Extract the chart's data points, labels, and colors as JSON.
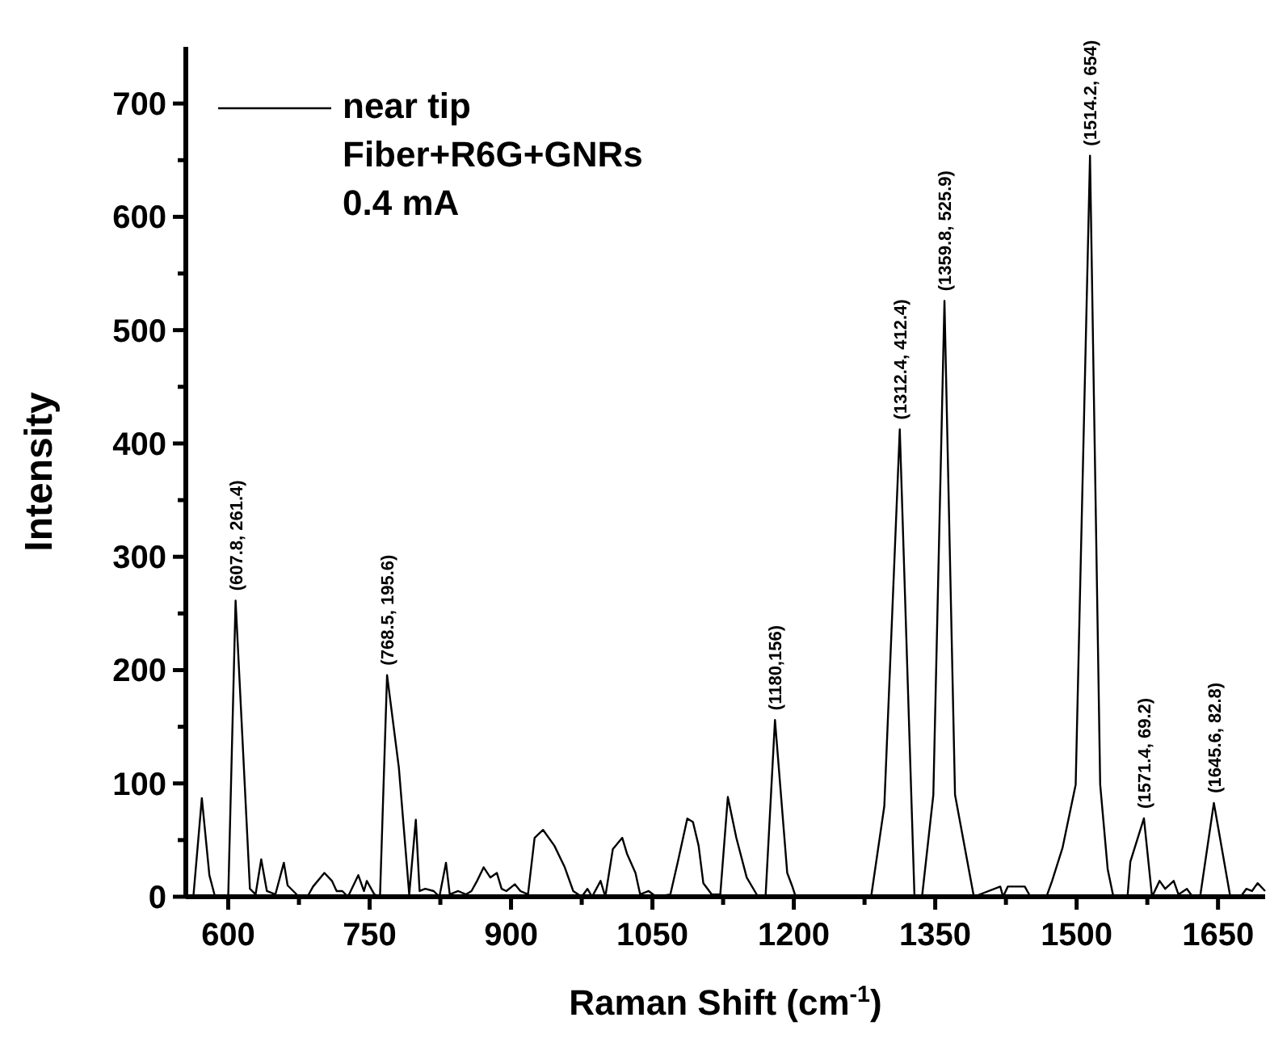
{
  "chart_data": {
    "type": "line",
    "xlabel": "Raman Shift (cm$^{-1}$)",
    "ylabel": "Intensity",
    "xlim": [
      555,
      1700
    ],
    "ylim": [
      0,
      750
    ],
    "xticks": [
      600,
      {
        "value": 675,
        "label": null
      },
      750,
      {
        "value": 825,
        "label": null
      },
      900,
      {
        "value": 975,
        "label": null
      },
      1050,
      {
        "value": 1125,
        "label": null
      },
      1200,
      {
        "value": 1275,
        "label": null
      },
      1350,
      {
        "value": 1425,
        "label": null
      },
      1500,
      {
        "value": 1575,
        "label": null
      },
      1650
    ],
    "yticks": [
      0,
      {
        "value": 50,
        "label": null
      },
      100,
      {
        "value": 150,
        "label": null
      },
      200,
      {
        "value": 250,
        "label": null
      },
      300,
      {
        "value": 350,
        "label": null
      },
      400,
      {
        "value": 450,
        "label": null
      },
      500,
      {
        "value": 550,
        "label": null
      },
      600,
      {
        "value": 650,
        "label": null
      },
      700
    ],
    "legend": "top left",
    "grid": false,
    "series": [
      {
        "name": "near tip",
        "color": "#000000",
        "x": [
          557,
          563,
          572,
          580,
          586,
          600,
          607.8,
          623,
          629,
          635,
          641,
          650,
          659,
          663,
          669,
          675,
          684,
          690,
          702,
          710,
          715,
          721,
          727,
          738,
          744,
          747,
          755,
          761,
          768.5,
          781,
          792,
          799,
          803,
          809,
          818,
          824,
          831,
          835,
          844,
          852,
          858,
          864,
          871,
          878,
          885,
          890,
          895,
          904,
          910,
          918,
          925,
          934,
          946,
          957,
          966,
          975,
          981,
          986,
          995,
          1000,
          1008,
          1018,
          1023,
          1032,
          1037,
          1046,
          1054,
          1069,
          1077,
          1087,
          1093,
          1099,
          1104,
          1113,
          1122,
          1130,
          1139,
          1150,
          1162,
          1170,
          1180,
          1193,
          1198,
          1202,
          1219,
          1268,
          1282,
          1296,
          1312.4,
          1328,
          1336,
          1348,
          1359.8,
          1371,
          1391,
          1419,
          1422,
          1427,
          1445,
          1451,
          1468,
          1474,
          1485,
          1499,
          1514.2,
          1525,
          1533,
          1539,
          1554,
          1557,
          1571.4,
          1580,
          1588,
          1594,
          1603,
          1608,
          1617,
          1623,
          1631,
          1645.6,
          1663,
          1674,
          1680,
          1686,
          1692,
          1700
        ],
        "values": [
          0,
          0,
          87,
          19,
          0,
          0,
          261.4,
          7,
          2,
          33,
          5,
          2,
          30,
          10,
          5,
          0,
          0,
          9,
          21,
          14,
          5,
          5,
          0,
          19,
          5,
          14,
          2,
          0,
          195.6,
          114,
          2,
          68,
          5,
          7,
          5,
          0,
          30,
          2,
          5,
          2,
          5,
          14,
          26,
          17,
          21,
          7,
          5,
          11,
          5,
          2,
          52,
          59,
          45,
          26,
          5,
          0,
          7,
          0,
          14,
          0,
          42,
          52,
          38,
          21,
          2,
          5,
          0,
          2,
          31,
          69,
          66,
          45,
          12,
          2,
          2,
          88,
          52,
          17,
          0,
          0,
          156,
          21,
          10,
          0,
          0,
          0,
          0,
          80,
          412.4,
          0,
          0,
          90,
          525.9,
          90,
          0,
          9,
          0,
          9,
          9,
          0,
          0,
          14,
          43,
          99,
          654,
          99,
          24,
          0,
          0,
          31,
          69.2,
          0,
          14,
          7,
          14,
          2,
          7,
          0,
          0,
          82.8,
          0,
          0,
          7,
          5,
          12,
          5
        ]
      }
    ],
    "annotations": [
      "Fiber+R6G+GNRs",
      "0.4 mA",
      {
        "text": "(607.8, 261.4)",
        "x": 607.8,
        "y": 261.4
      },
      {
        "text": "(768.5, 195.6)",
        "x": 768.5,
        "y": 195.6
      },
      {
        "text": "(1180,156)",
        "x": 1180,
        "y": 156
      },
      {
        "text": "(1312.4, 412.4)",
        "x": 1312.4,
        "y": 412.4
      },
      {
        "text": "(1359.8, 525.9)",
        "x": 1359.8,
        "y": 525.9
      },
      {
        "text": "(1514.2, 654)",
        "x": 1514.2,
        "y": 654
      },
      {
        "text": "(1571.4, 69.2)",
        "x": 1571.4,
        "y": 69.2
      },
      {
        "text": "(1645.6, 82.8)",
        "x": 1645.6,
        "y": 82.8
      }
    ]
  }
}
